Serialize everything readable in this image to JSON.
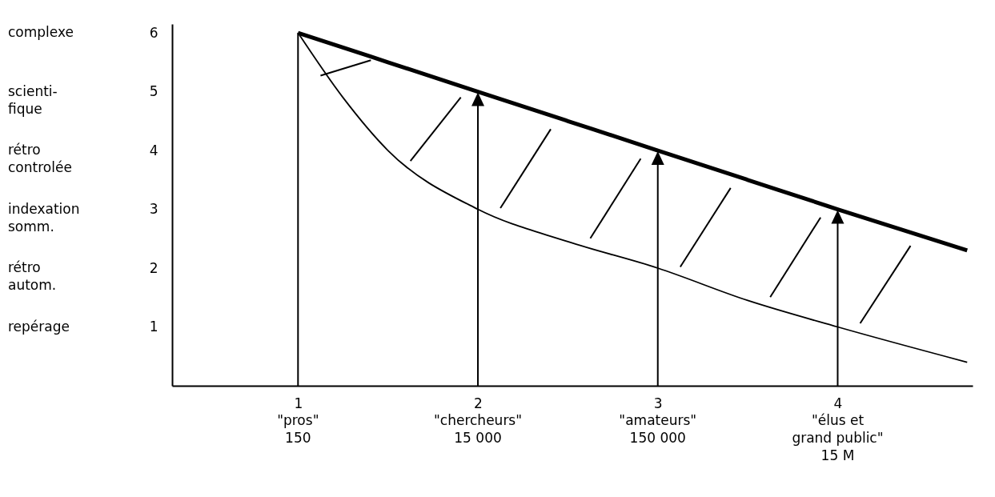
{
  "chart_data": {
    "type": "line",
    "x": [
      1,
      1.25,
      1.5,
      2,
      2.5,
      3,
      3.5,
      4,
      4.72
    ],
    "xlim": [
      0.3,
      4.75
    ],
    "xticks": [
      1,
      2,
      3,
      4
    ],
    "ylim": [
      0,
      6.15
    ],
    "yticks": [
      1,
      2,
      3,
      4,
      5,
      6
    ],
    "annotations": [
      "\"pros\"\n150",
      "\"chercheurs\"\n15 000",
      "\"amateurs\"\n150 000",
      "\"élus et\ngrand public\"\n15 M",
      "repérage",
      "rétro\nautom.",
      "indexation\nsomm.",
      "rétro\ncontrolée",
      "scienti-\nfique",
      "complexe"
    ],
    "grid": "x",
    "series": [
      {
        "color": "#000000",
        "values": [
          6,
          5.75,
          5.5,
          5,
          4.5,
          4,
          3.5,
          3,
          2.3
        ]
      },
      {
        "color": "#000000",
        "values": [
          6,
          4.9,
          4.0,
          3.0,
          2.45,
          2.0,
          1.45,
          1.0,
          0.4
        ]
      }
    ]
  }
}
